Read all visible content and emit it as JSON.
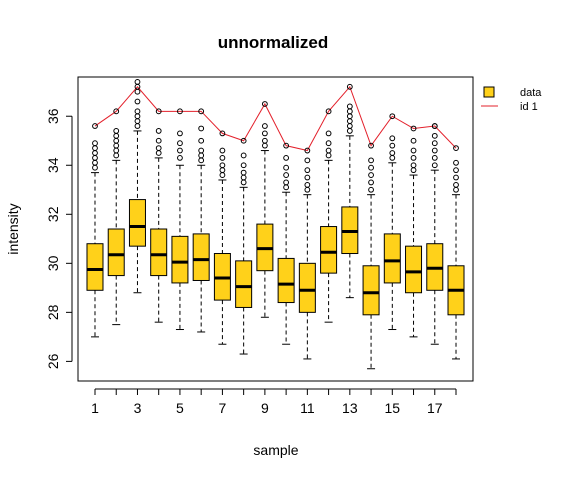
{
  "chart_data": {
    "type": "boxplot",
    "title": "unnormalized",
    "xlabel": "sample",
    "ylabel": "intensity",
    "ylim": [
      25.2,
      37.6
    ],
    "xlim": [
      0.2,
      18.8
    ],
    "x_tick_labels": [
      "1",
      "3",
      "5",
      "7",
      "9",
      "11",
      "13",
      "15",
      "17"
    ],
    "x_tick_positions": [
      1,
      3,
      5,
      7,
      9,
      11,
      13,
      15,
      17
    ],
    "x_minor_tick_positions": [
      2,
      4,
      6,
      8,
      10,
      12,
      14,
      16,
      18
    ],
    "y_ticks": [
      26,
      28,
      30,
      32,
      34,
      36
    ],
    "y_tick_labels": [
      "26",
      "28",
      "30",
      "32",
      "34",
      "36"
    ],
    "grid": false,
    "legend_position": "top-right",
    "colors": {
      "box_fill": "#FFD11A",
      "line": "#E3202B",
      "axis": "#000000"
    },
    "legend": [
      {
        "label": "data",
        "kind": "box"
      },
      {
        "label": "id 1",
        "kind": "line"
      }
    ],
    "boxes": [
      {
        "sample": 1,
        "whisker_low": 27.0,
        "q1": 28.9,
        "median": 29.75,
        "q3": 30.8,
        "whisker_high": 33.7,
        "outliers": [
          33.9,
          34.1,
          34.3,
          34.5,
          34.7,
          34.9
        ]
      },
      {
        "sample": 2,
        "whisker_low": 27.5,
        "q1": 29.5,
        "median": 30.35,
        "q3": 31.4,
        "whisker_high": 34.2,
        "outliers": [
          34.4,
          34.6,
          34.8,
          35.0,
          35.2,
          35.4
        ]
      },
      {
        "sample": 3,
        "whisker_low": 28.8,
        "q1": 30.7,
        "median": 31.5,
        "q3": 32.6,
        "whisker_high": 35.4,
        "outliers": [
          35.6,
          35.8,
          36.0,
          36.2,
          36.6,
          37.0,
          37.4
        ]
      },
      {
        "sample": 4,
        "whisker_low": 27.6,
        "q1": 29.5,
        "median": 30.35,
        "q3": 31.4,
        "whisker_high": 34.3,
        "outliers": [
          34.5,
          34.7,
          35.0,
          35.4
        ]
      },
      {
        "sample": 5,
        "whisker_low": 27.3,
        "q1": 29.2,
        "median": 30.05,
        "q3": 31.1,
        "whisker_high": 34.0,
        "outliers": [
          34.3,
          34.6,
          34.9,
          35.3
        ]
      },
      {
        "sample": 6,
        "whisker_low": 27.2,
        "q1": 29.3,
        "median": 30.15,
        "q3": 31.2,
        "whisker_high": 34.0,
        "outliers": [
          34.2,
          34.4,
          34.6,
          35.0,
          35.5
        ]
      },
      {
        "sample": 7,
        "whisker_low": 26.7,
        "q1": 28.5,
        "median": 29.4,
        "q3": 30.4,
        "whisker_high": 33.4,
        "outliers": [
          33.6,
          33.8,
          34.0,
          34.3,
          34.6
        ]
      },
      {
        "sample": 8,
        "whisker_low": 26.3,
        "q1": 28.2,
        "median": 29.05,
        "q3": 30.1,
        "whisker_high": 33.1,
        "outliers": [
          33.3,
          33.5,
          33.7,
          34.0,
          34.4
        ]
      },
      {
        "sample": 9,
        "whisker_low": 27.8,
        "q1": 29.7,
        "median": 30.6,
        "q3": 31.6,
        "whisker_high": 34.6,
        "outliers": [
          34.8,
          35.0,
          35.3,
          35.6
        ]
      },
      {
        "sample": 10,
        "whisker_low": 26.7,
        "q1": 28.4,
        "median": 29.15,
        "q3": 30.2,
        "whisker_high": 32.9,
        "outliers": [
          33.1,
          33.3,
          33.6,
          33.9,
          34.3
        ]
      },
      {
        "sample": 11,
        "whisker_low": 26.1,
        "q1": 28.0,
        "median": 28.9,
        "q3": 30.0,
        "whisker_high": 32.8,
        "outliers": [
          33.0,
          33.2,
          33.5,
          33.8,
          34.2
        ]
      },
      {
        "sample": 12,
        "whisker_low": 27.6,
        "q1": 29.6,
        "median": 30.45,
        "q3": 31.5,
        "whisker_high": 34.2,
        "outliers": [
          34.4,
          34.6,
          34.9,
          35.3
        ]
      },
      {
        "sample": 13,
        "whisker_low": 28.6,
        "q1": 30.4,
        "median": 31.3,
        "q3": 32.3,
        "whisker_high": 35.2,
        "outliers": [
          35.4,
          35.6,
          35.8,
          36.0,
          36.2,
          36.4
        ]
      },
      {
        "sample": 14,
        "whisker_low": 25.7,
        "q1": 27.9,
        "median": 28.8,
        "q3": 29.9,
        "whisker_high": 32.8,
        "outliers": [
          33.0,
          33.3,
          33.6,
          33.9,
          34.2
        ]
      },
      {
        "sample": 15,
        "whisker_low": 27.3,
        "q1": 29.2,
        "median": 30.1,
        "q3": 31.2,
        "whisker_high": 34.1,
        "outliers": [
          34.3,
          34.5,
          34.8,
          35.1
        ]
      },
      {
        "sample": 16,
        "whisker_low": 27.0,
        "q1": 28.8,
        "median": 29.65,
        "q3": 30.7,
        "whisker_high": 33.6,
        "outliers": [
          33.8,
          34.0,
          34.3,
          34.6,
          35.0
        ]
      },
      {
        "sample": 17,
        "whisker_low": 26.7,
        "q1": 28.9,
        "median": 29.8,
        "q3": 30.8,
        "whisker_high": 33.8,
        "outliers": [
          34.0,
          34.3,
          34.6,
          34.9,
          35.2,
          35.6
        ]
      },
      {
        "sample": 18,
        "whisker_low": 26.1,
        "q1": 27.9,
        "median": 28.9,
        "q3": 29.9,
        "whisker_high": 32.8,
        "outliers": [
          33.0,
          33.2,
          33.5,
          33.8,
          34.1
        ]
      }
    ],
    "line_series": {
      "name": "id 1",
      "x": [
        1,
        2,
        3,
        4,
        5,
        6,
        7,
        8,
        9,
        10,
        11,
        12,
        13,
        14,
        15,
        16,
        17,
        18
      ],
      "values": [
        35.6,
        36.2,
        37.2,
        36.2,
        36.2,
        36.2,
        35.3,
        35.0,
        36.5,
        34.8,
        34.6,
        36.2,
        37.2,
        34.8,
        36.0,
        35.5,
        35.6,
        34.7
      ]
    }
  }
}
